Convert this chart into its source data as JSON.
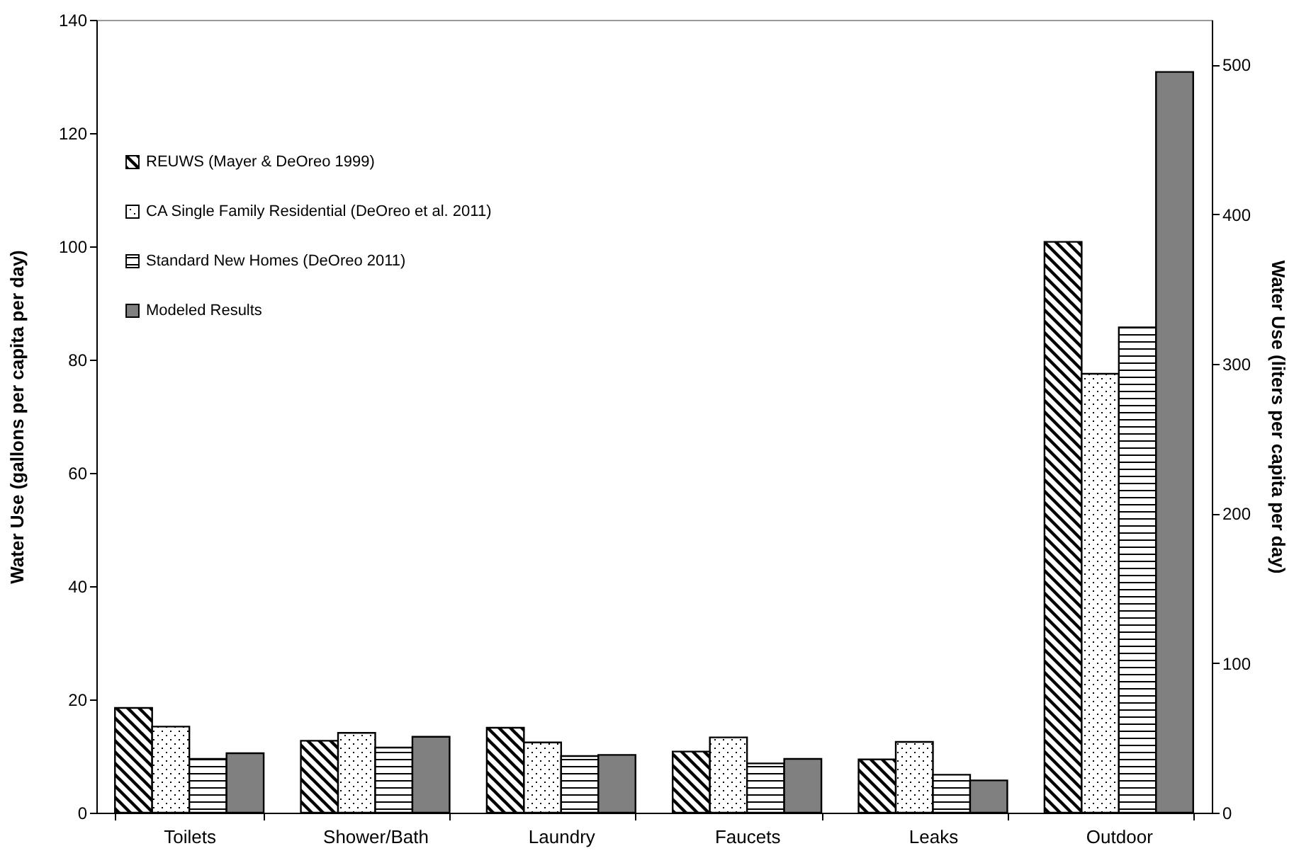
{
  "chart_data": {
    "type": "bar",
    "ylabel": "Water Use (gallons per capita per day)",
    "y2label": "Water Use (liters per capita per day)",
    "categories": [
      "Toilets",
      "Shower/Bath",
      "Laundry",
      "Faucets",
      "Leaks",
      "Outdoor"
    ],
    "series": [
      {
        "name": "REUWS (Mayer & DeOreo 1999)",
        "color": "#000000",
        "values": [
          18.5,
          12.7,
          15.0,
          10.8,
          9.4,
          100.8
        ]
      },
      {
        "name": "CA Single Family Residential (DeOreo et al. 2011)",
        "color": "#000000",
        "values": [
          15.2,
          14.1,
          12.4,
          13.3,
          12.5,
          77.5
        ]
      },
      {
        "name": "Standard New Homes (DeOreo 2011)",
        "color": "#000000",
        "values": [
          9.5,
          11.5,
          10.0,
          8.7,
          6.7,
          85.7
        ]
      },
      {
        "name": "Modeled Results",
        "color": "#808080",
        "values": [
          10.5,
          13.4,
          10.2,
          9.5,
          5.7,
          130.8
        ]
      }
    ],
    "ylim": [
      0,
      140
    ],
    "yticks": [
      0,
      20,
      40,
      60,
      80,
      100,
      120,
      140
    ],
    "y2lim": [
      0,
      529.9
    ],
    "y2ticks": [
      0,
      100,
      200,
      300,
      400,
      500
    ],
    "legend": "top left",
    "grid": false
  }
}
